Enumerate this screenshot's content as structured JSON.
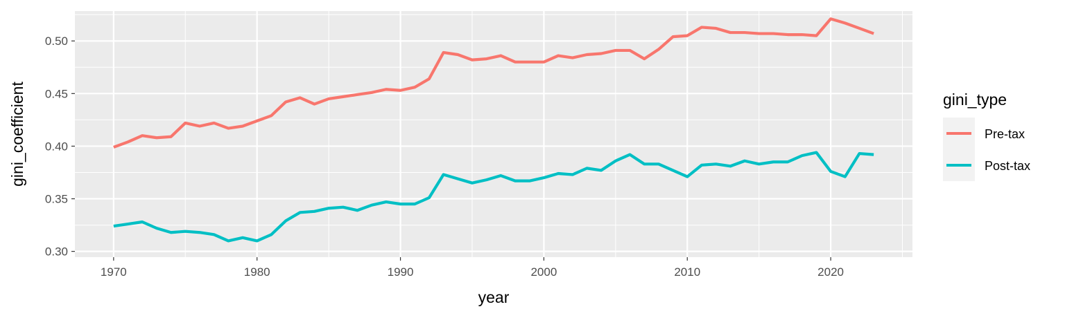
{
  "chart_data": {
    "type": "line",
    "title": "",
    "xlabel": "year",
    "ylabel": "gini_coefficient",
    "xlim": [
      1967.3,
      1925.7
    ],
    "ylim": [
      0.2945,
      0.5284
    ],
    "x_ticks": [
      1970,
      1980,
      1990,
      2000,
      2010,
      2020
    ],
    "x_tick_labels": [
      "1970",
      "1980",
      "1990",
      "2000",
      "2010",
      "2020"
    ],
    "y_ticks": [
      0.3,
      0.35,
      0.4,
      0.45,
      0.5
    ],
    "y_tick_labels": [
      "0.30",
      "0.35",
      "0.40",
      "0.45",
      "0.50"
    ],
    "grid": true,
    "legend": {
      "title": "gini_type",
      "placement": "right"
    },
    "x": [
      1970,
      1971,
      1972,
      1973,
      1974,
      1975,
      1976,
      1977,
      1978,
      1979,
      1980,
      1981,
      1982,
      1983,
      1984,
      1985,
      1986,
      1987,
      1988,
      1989,
      1990,
      1991,
      1992,
      1993,
      1994,
      1995,
      1996,
      1997,
      1998,
      1999,
      2000,
      2001,
      2002,
      2003,
      2004,
      2005,
      2006,
      2007,
      2008,
      2009,
      2010,
      2011,
      2012,
      2013,
      2014,
      2015,
      2016,
      2017,
      2018,
      2019,
      2020,
      2021,
      2022,
      2023
    ],
    "series": [
      {
        "name": "Pre-tax",
        "color": "#F8766D",
        "values": [
          0.399,
          0.404,
          0.41,
          0.408,
          0.409,
          0.422,
          0.419,
          0.422,
          0.417,
          0.419,
          0.424,
          0.429,
          0.442,
          0.446,
          0.44,
          0.445,
          0.447,
          0.449,
          0.451,
          0.454,
          0.453,
          0.456,
          0.464,
          0.489,
          0.487,
          0.482,
          0.483,
          0.486,
          0.48,
          0.48,
          0.48,
          0.486,
          0.484,
          0.487,
          0.488,
          0.491,
          0.491,
          0.483,
          0.492,
          0.504,
          0.505,
          0.513,
          0.512,
          0.508,
          0.508,
          0.507,
          0.507,
          0.506,
          0.506,
          0.505,
          0.521,
          0.517,
          0.512,
          0.507
        ]
      },
      {
        "name": "Post-tax",
        "color": "#00BFC4",
        "values": [
          0.324,
          0.326,
          0.328,
          0.322,
          0.318,
          0.319,
          0.318,
          0.316,
          0.31,
          0.313,
          0.31,
          0.316,
          0.329,
          0.337,
          0.338,
          0.341,
          0.342,
          0.339,
          0.344,
          0.347,
          0.345,
          0.345,
          0.351,
          0.373,
          0.369,
          0.365,
          0.368,
          0.372,
          0.367,
          0.367,
          0.37,
          0.374,
          0.373,
          0.379,
          0.377,
          0.386,
          0.392,
          0.383,
          0.383,
          0.377,
          0.371,
          0.382,
          0.383,
          0.381,
          0.386,
          0.383,
          0.385,
          0.385,
          0.391,
          0.394,
          0.376,
          0.371,
          0.393,
          0.392
        ]
      }
    ]
  }
}
